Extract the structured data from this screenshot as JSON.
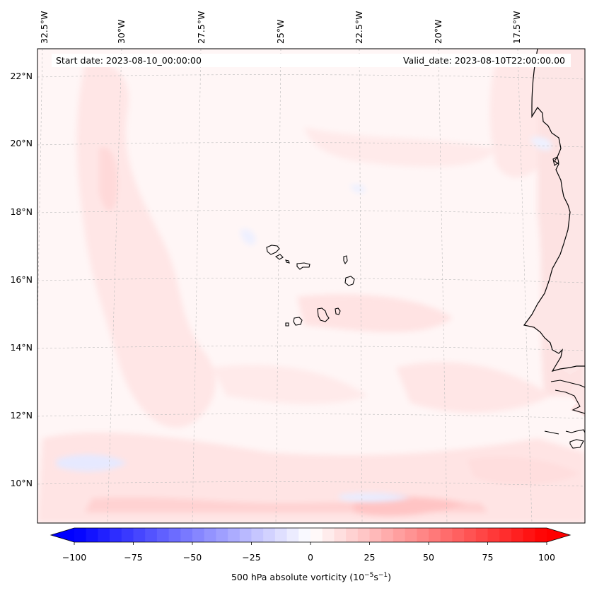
{
  "header": {
    "start_date": "Start date: 2023-08-10_00:00:00",
    "valid_date": "Valid_date: 2023-08-10T22:00:00.00"
  },
  "map": {
    "lon_labels": [
      "32.5°W",
      "30°W",
      "27.5°W",
      "25°W",
      "22.5°W",
      "20°W",
      "17.5°W"
    ],
    "lat_labels": [
      "22°N",
      "20°N",
      "18°N",
      "16°N",
      "14°N",
      "12°N",
      "10°N"
    ],
    "field": "500 hPa absolute vorticity",
    "colors": {
      "coastline": "#000000",
      "grid": "#bbbbbb",
      "positive_weak": "#ffe3e3",
      "positive_light": "#fff4f4",
      "negative_weak": "#e8ecff"
    }
  },
  "colorbar": {
    "ticks": [
      "−100",
      "−75",
      "−50",
      "−25",
      "0",
      "25",
      "50",
      "75",
      "100"
    ],
    "label_main": "500 hPa absolute vorticity (10",
    "label_exp1": "−5",
    "label_mid": "s",
    "label_exp2": "−1",
    "label_end": ")",
    "min_color": "#0000ff",
    "mid_color": "#ffffff",
    "max_color": "#ff0000"
  }
}
